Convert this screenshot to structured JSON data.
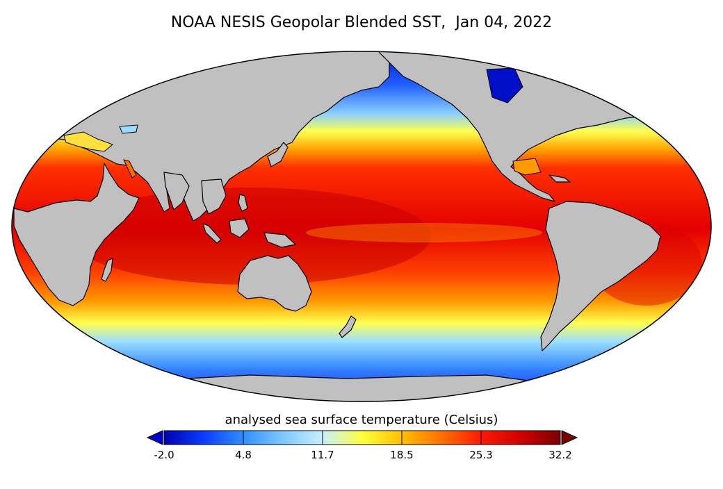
{
  "map": {
    "title": "NOAA NESIS Geopolar Blended SST,  Jan 04, 2022",
    "projection": "Mollweide",
    "variable": "sea surface temperature",
    "land_color": "#c0c0c0"
  },
  "colorbar": {
    "label": "analysed sea surface temperature (Celsius)",
    "ticks": [
      "-2.0",
      "4.8",
      "11.7",
      "18.5",
      "25.3",
      "32.2"
    ],
    "min": -2.0,
    "max": 32.2,
    "colors": [
      "#0000b4",
      "#0a3cff",
      "#2f8fff",
      "#7ec8ff",
      "#c8f0ff",
      "#ffff3c",
      "#ffc000",
      "#ff7000",
      "#ff1a00",
      "#d00000",
      "#7a0000"
    ]
  }
}
